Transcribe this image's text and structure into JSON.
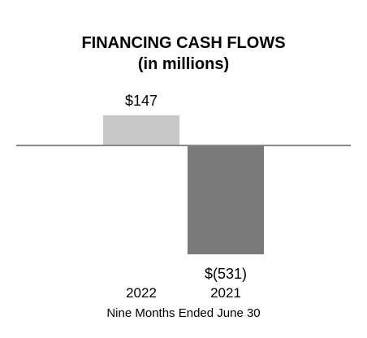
{
  "chart_data": {
    "type": "bar",
    "title": "FINANCING CASH FLOWS",
    "subtitle": "(in millions)",
    "categories": [
      "2022",
      "2021"
    ],
    "values": [
      147,
      -531
    ],
    "data_labels": [
      "$147",
      "$(531)"
    ],
    "colors": [
      "#c8c8c8",
      "#7a7a7a"
    ],
    "xlabel": "Nine Months Ended June 30",
    "ylabel": "",
    "ylim": [
      -531,
      147
    ],
    "grid": false,
    "baseline_color": "#888888"
  }
}
